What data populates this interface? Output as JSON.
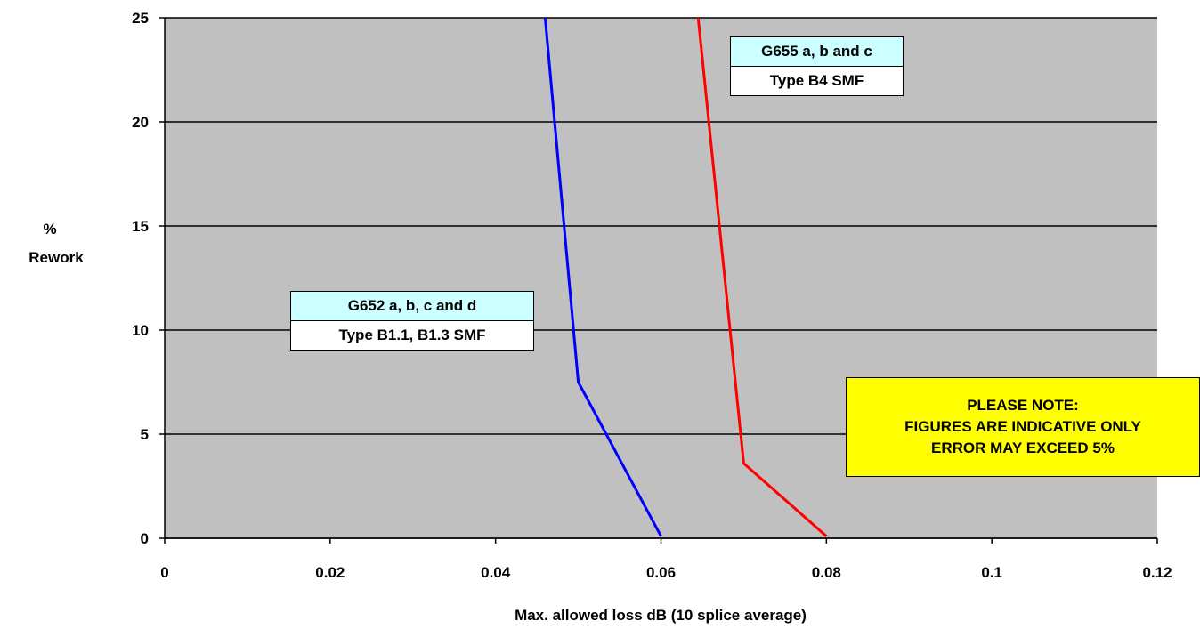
{
  "chart_data": {
    "type": "line",
    "xlabel": "Max. allowed loss dB (10 splice average)",
    "ylabel": [
      "%",
      "Rework"
    ],
    "xlim": [
      0,
      0.12
    ],
    "ylim": [
      0,
      25
    ],
    "x_ticks": [
      "0",
      "0.02",
      "0.04",
      "0.06",
      "0.08",
      "0.1",
      "0.12"
    ],
    "y_ticks": [
      "0",
      "5",
      "10",
      "15",
      "20",
      "25"
    ],
    "grid": "horizontal",
    "plot_background": "#c0c0c0",
    "series": [
      {
        "color": "#0000ff",
        "points": [
          [
            0.046,
            25
          ],
          [
            0.05,
            7.5
          ],
          [
            0.06,
            0.1
          ]
        ]
      },
      {
        "color": "#ff0000",
        "points": [
          [
            0.0645,
            25
          ],
          [
            0.07,
            3.6
          ],
          [
            0.08,
            0.1
          ]
        ]
      }
    ],
    "annotations": {
      "g652": {
        "line1": "G652 a, b, c and d",
        "line2": "Type B1.1, B1.3 SMF",
        "header_color": "#ccffff"
      },
      "g655": {
        "line1": "G655 a, b and c",
        "line2": "Type B4 SMF",
        "header_color": "#ccffff"
      },
      "note": {
        "line1": "PLEASE NOTE:",
        "line2": "FIGURES ARE INDICATIVE ONLY",
        "line3": "ERROR MAY EXCEED 5%",
        "color": "#ffff00"
      }
    }
  }
}
